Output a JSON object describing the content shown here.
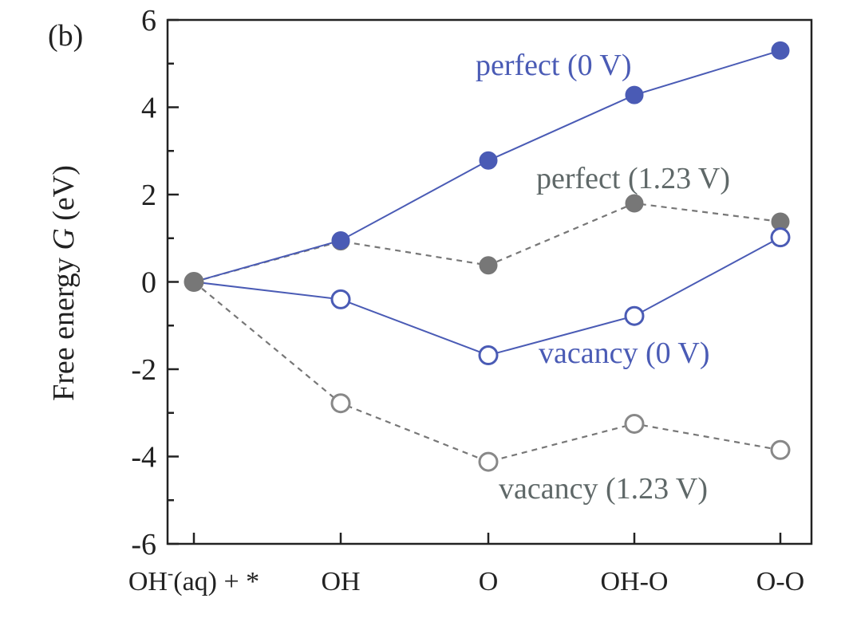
{
  "panel_label": "(b)",
  "chart_data": {
    "type": "line",
    "title": "",
    "xlabel": "",
    "ylabel_prefix": "Free energy ",
    "ylabel_var": "G",
    "ylabel_suffix": " (eV)",
    "categories": [
      "OH",
      "OH",
      "O",
      "OH-O",
      "O-O"
    ],
    "category_labels": [
      {
        "main": "OH",
        "sup": "-",
        "rest": "(aq) + *"
      },
      {
        "main": "OH",
        "sup": "",
        "rest": ""
      },
      {
        "main": "O",
        "sup": "",
        "rest": ""
      },
      {
        "main": "OH-O",
        "sup": "",
        "rest": ""
      },
      {
        "main": "O-O",
        "sup": "",
        "rest": ""
      }
    ],
    "ylim": [
      -6,
      6
    ],
    "yticks": [
      -6,
      -4,
      -2,
      0,
      2,
      4,
      6
    ],
    "ytick_labels": [
      "-6",
      "-4",
      "-2",
      "0",
      "2",
      "4",
      "6"
    ],
    "grid": false,
    "series": [
      {
        "name": "perfect (0 V)",
        "values": [
          0,
          0.95,
          2.78,
          4.28,
          5.3
        ],
        "color": "#4a5bb5",
        "marker": "filled",
        "line": "solid"
      },
      {
        "name": "perfect (1.23 V)",
        "values": [
          0,
          0.93,
          0.38,
          1.8,
          1.38
        ],
        "color": "#777777",
        "marker": "filled",
        "line": "dashed"
      },
      {
        "name": "vacancy (0 V)",
        "values": [
          0,
          -0.4,
          -1.68,
          -0.78,
          1.02
        ],
        "color": "#4a5bb5",
        "marker": "open",
        "line": "solid"
      },
      {
        "name": "vacancy (1.23 V)",
        "values": [
          0,
          -2.78,
          -4.12,
          -3.25,
          -3.85
        ],
        "color": "#777777",
        "marker": "open",
        "line": "dashed"
      }
    ],
    "annotation_colors": {
      "perfect (0 V)": "#4a5bb5",
      "perfect (1.23 V)": "#5f6868",
      "vacancy (0 V)": "#4a5bb5",
      "vacancy (1.23 V)": "#5f6868"
    },
    "filled_marker_gray": "#777777",
    "open_marker_gray": "#888888"
  }
}
